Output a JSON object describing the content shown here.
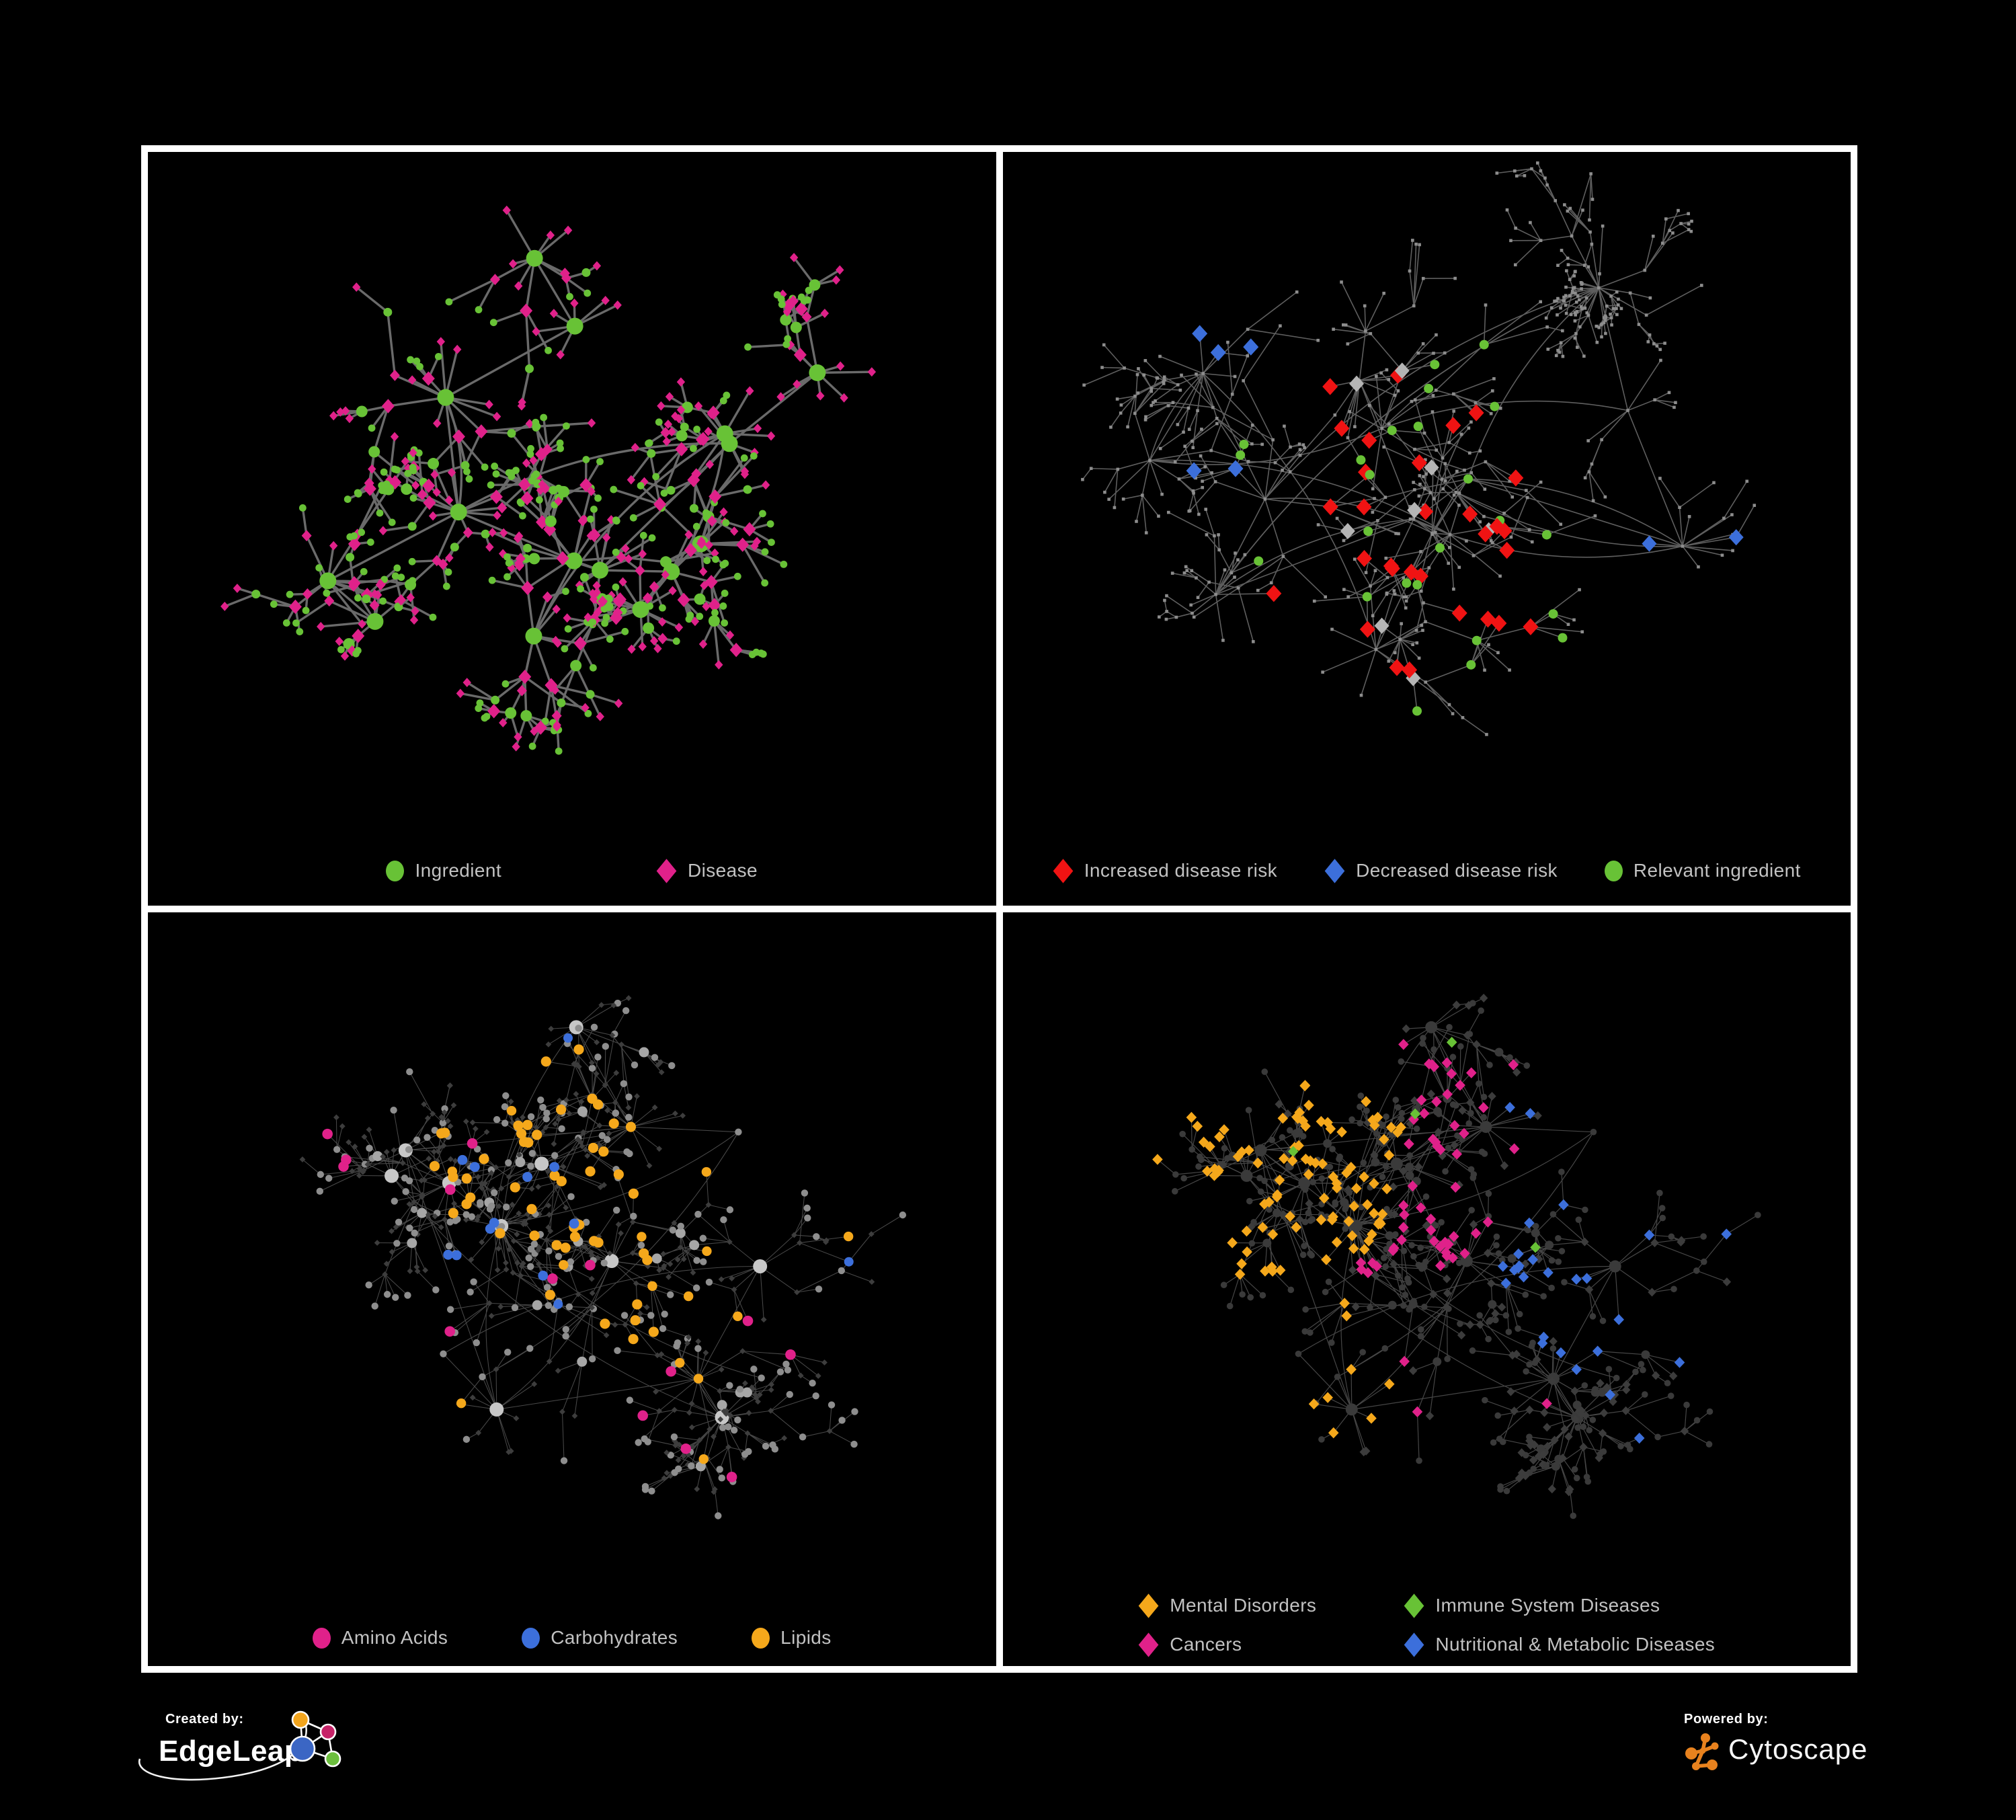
{
  "colors": {
    "background": "#000000",
    "panel_background": "#000000",
    "frame": "#FFFFFF",
    "legend_text": "#C2C2C2",
    "edge_gray": "#707070",
    "green": "#68C236",
    "pink": "#E0218A",
    "red": "#F01313",
    "blue": "#3C6FDB",
    "orange": "#F5A81B",
    "highlight_gray": "#B5B5B5"
  },
  "panels": [
    {
      "id": "ingredient-disease",
      "legend": [
        {
          "shape": "circle",
          "color": "#68C236",
          "label": "Ingredient"
        },
        {
          "shape": "diamond",
          "color": "#E0218A",
          "label": "Disease"
        }
      ]
    },
    {
      "id": "disease-risk",
      "legend": [
        {
          "shape": "diamond",
          "color": "#F01313",
          "label": "Increased disease risk"
        },
        {
          "shape": "diamond",
          "color": "#3C6FDB",
          "label": "Decreased disease risk"
        },
        {
          "shape": "circle",
          "color": "#68C236",
          "label": "Relevant ingredient"
        }
      ]
    },
    {
      "id": "nutrient-classes",
      "legend": [
        {
          "shape": "circle",
          "color": "#E0218A",
          "label": "Amino Acids"
        },
        {
          "shape": "circle",
          "color": "#3C6FDB",
          "label": "Carbohydrates"
        },
        {
          "shape": "circle",
          "color": "#F5A81B",
          "label": "Lipids"
        }
      ]
    },
    {
      "id": "disease-categories",
      "legend": [
        {
          "shape": "diamond",
          "color": "#F5A81B",
          "label": "Mental Disorders"
        },
        {
          "shape": "diamond",
          "color": "#68C236",
          "label": "Immune System Diseases"
        },
        {
          "shape": "diamond",
          "color": "#E0218A",
          "label": "Cancers"
        },
        {
          "shape": "diamond",
          "color": "#3C6FDB",
          "label": "Nutritional & Metabolic Diseases"
        }
      ]
    }
  ],
  "footer": {
    "created_by": {
      "label": "Created by:",
      "brand": "EdgeLeap"
    },
    "powered_by": {
      "label": "Powered by:",
      "brand": "Cytoscape"
    }
  }
}
